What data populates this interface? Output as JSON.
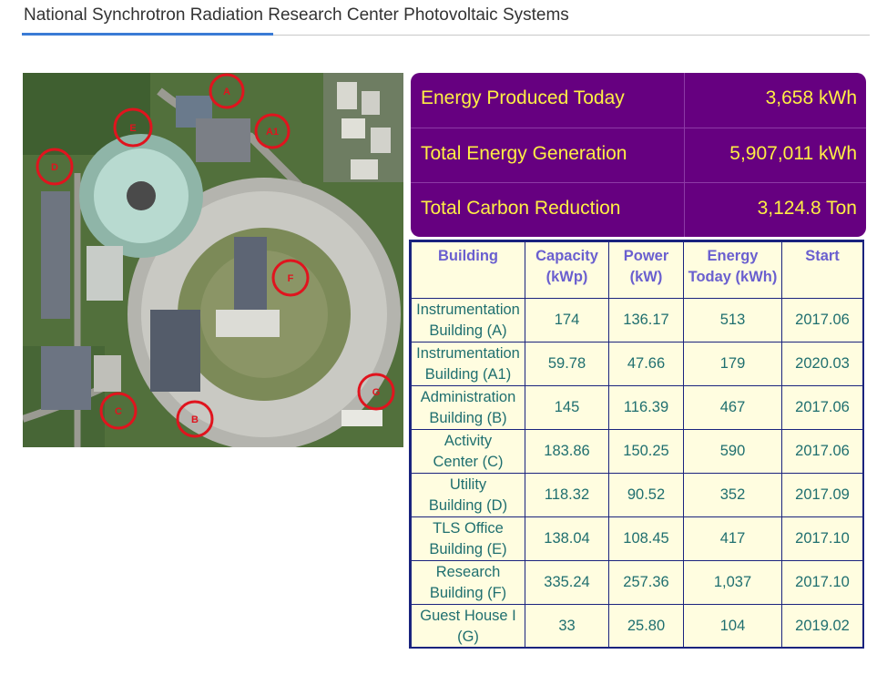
{
  "page": {
    "title": "National Synchrotron Radiation Research Center Photovoltaic Systems"
  },
  "photo": {
    "markers": [
      "A",
      "A1",
      "E",
      "D",
      "F",
      "G",
      "C",
      "B"
    ]
  },
  "summary": [
    {
      "label": "Energy Produced Today",
      "value": "3,658 kWh"
    },
    {
      "label": "Total Energy Generation",
      "value": "5,907,011 kWh"
    },
    {
      "label": "Total Carbon Reduction",
      "value": "3,124.8 Ton"
    }
  ],
  "table": {
    "headers": [
      {
        "line1": "Building",
        "line2": ""
      },
      {
        "line1": "Capacity",
        "line2": "(kWp)"
      },
      {
        "line1": "Power",
        "line2": "(kW)"
      },
      {
        "line1": "Energy",
        "line2": "Today (kWh)"
      },
      {
        "line1": "Start",
        "line2": ""
      }
    ],
    "rows": [
      {
        "line1": "Instrumentation",
        "line2": "Building (A)",
        "capacity": "174",
        "power": "136.17",
        "energy": "513",
        "start": "2017.06"
      },
      {
        "line1": "Instrumentation",
        "line2": "Building (A1)",
        "capacity": "59.78",
        "power": "47.66",
        "energy": "179",
        "start": "2020.03"
      },
      {
        "line1": "Administration",
        "line2": "Building (B)",
        "capacity": "145",
        "power": "116.39",
        "energy": "467",
        "start": "2017.06"
      },
      {
        "line1": "Activity",
        "line2": "Center (C)",
        "capacity": "183.86",
        "power": "150.25",
        "energy": "590",
        "start": "2017.06"
      },
      {
        "line1": "Utility",
        "line2": "Building (D)",
        "capacity": "118.32",
        "power": "90.52",
        "energy": "352",
        "start": "2017.09"
      },
      {
        "line1": "TLS Office",
        "line2": "Building (E)",
        "capacity": "138.04",
        "power": "108.45",
        "energy": "417",
        "start": "2017.10"
      },
      {
        "line1": "Research",
        "line2": "Building (F)",
        "capacity": "335.24",
        "power": "257.36",
        "energy": "1,037",
        "start": "2017.10"
      },
      {
        "line1": "Guest House I",
        "line2": "(G)",
        "capacity": "33",
        "power": "25.80",
        "energy": "104",
        "start": "2019.02"
      }
    ]
  }
}
